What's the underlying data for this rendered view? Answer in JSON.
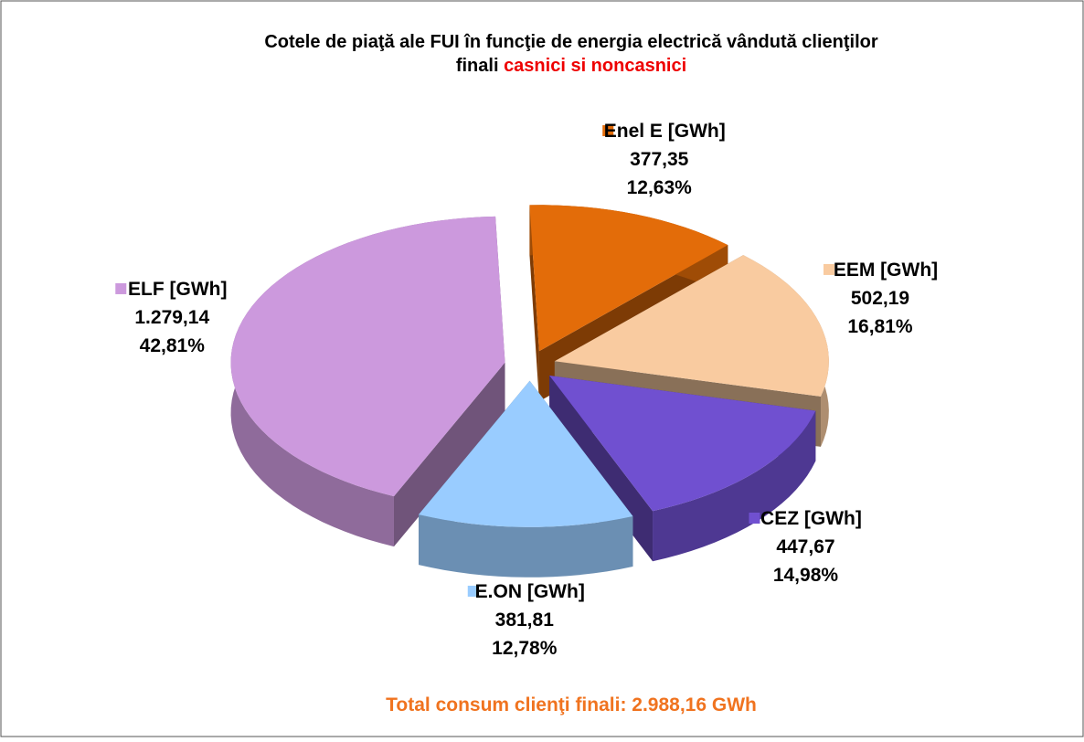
{
  "chart_data": {
    "type": "pie3d",
    "title": "Cotele de piaţă ale FUI în funcţie de energia electrică vândută clienţilor finali",
    "title_highlight": "casnici si noncasnici",
    "annotation": "Total consum clienţi finali: 2.988,16 GWh",
    "categories": [
      "Enel E [GWh]",
      "EEM [GWh]",
      "CEZ [GWh]",
      "E.ON [GWh]",
      "ELF [GWh]"
    ],
    "values": [
      377.35,
      502.19,
      447.67,
      381.81,
      1279.14
    ],
    "value_labels": [
      "377,35",
      "502,19",
      "447,67",
      "381,81",
      "1.279,14"
    ],
    "percentages": [
      12.63,
      16.81,
      14.98,
      12.78,
      42.81
    ],
    "percentage_labels": [
      "12,63%",
      "16,81%",
      "14,98%",
      "12,78%",
      "42,81%"
    ],
    "colors": [
      "#e36c09",
      "#f9cba0",
      "#7050d0",
      "#99ccff",
      "#cc99dd"
    ]
  }
}
